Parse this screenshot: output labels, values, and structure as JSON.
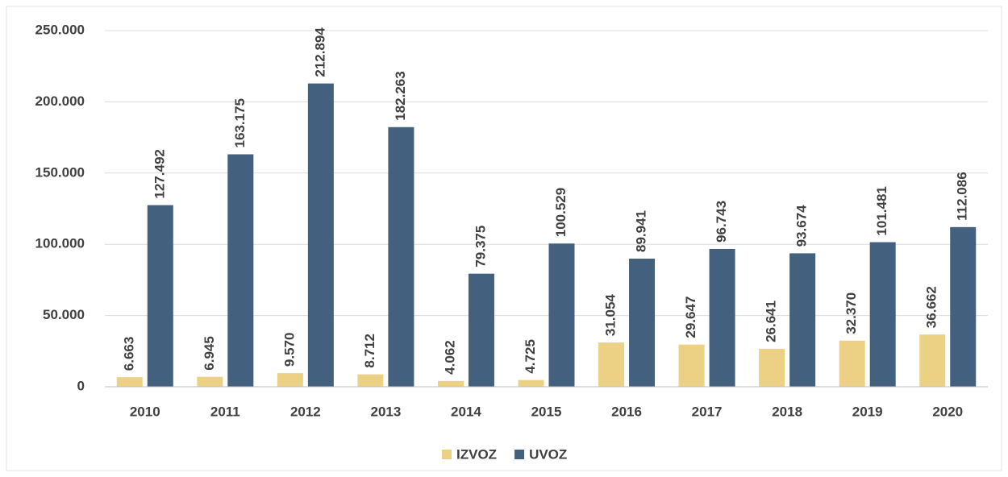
{
  "chart_data": {
    "type": "bar",
    "categories": [
      "2010",
      "2011",
      "2012",
      "2013",
      "2014",
      "2015",
      "2016",
      "2017",
      "2018",
      "2019",
      "2020"
    ],
    "series": [
      {
        "name": "IZVOZ",
        "color": "#ecd184",
        "values": [
          6663,
          6945,
          9570,
          8712,
          4062,
          4725,
          31054,
          29647,
          26641,
          32370,
          36662
        ],
        "value_labels": [
          "6.663",
          "6.945",
          "9.570",
          "8.712",
          "4.062",
          "4.725",
          "31.054",
          "29.647",
          "26.641",
          "32.370",
          "36.662"
        ]
      },
      {
        "name": "UVOZ",
        "color": "#44607f",
        "values": [
          127492,
          163175,
          212894,
          182263,
          79375,
          100529,
          89941,
          96743,
          93674,
          101481,
          112086
        ],
        "value_labels": [
          "127.492",
          "163.175",
          "212.894",
          "182.263",
          "79.375",
          "100.529",
          "89.941",
          "96.743",
          "93.674",
          "101.481",
          "112.086"
        ]
      }
    ],
    "ylim": [
      0,
      250000
    ],
    "yticks": [
      0,
      {
        "value": 50000,
        "label": "50.000"
      },
      {
        "value": 100000,
        "label": "100.000"
      },
      {
        "value": 150000,
        "label": "150.000"
      },
      {
        "value": 200000,
        "label": "200.000"
      },
      {
        "value": 250000,
        "label": "250.000"
      }
    ],
    "grid": true,
    "legend": "bottom"
  }
}
